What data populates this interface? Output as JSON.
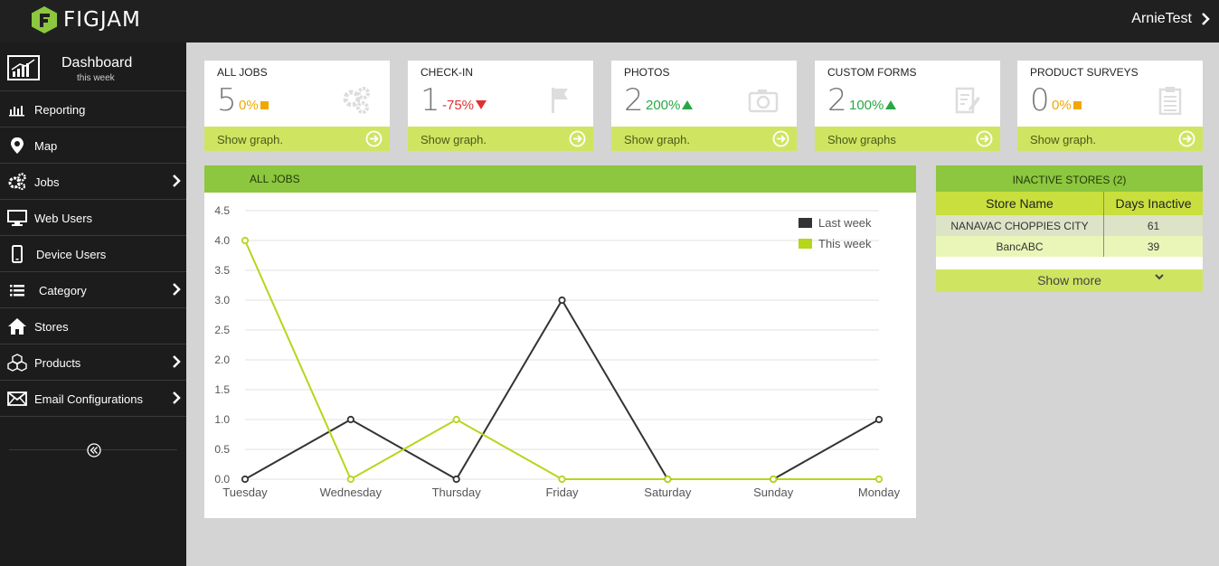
{
  "app": {
    "logo_text": "FIGJAM",
    "user": "ArnieTest"
  },
  "sidebar": {
    "title": "Dashboard",
    "subtitle": "this week",
    "items": [
      {
        "label": "Reporting",
        "icon": "bar-chart-icon",
        "arrow": false
      },
      {
        "label": "Map",
        "icon": "map-pin-icon",
        "arrow": false
      },
      {
        "label": "Jobs",
        "icon": "gears-icon",
        "arrow": true
      },
      {
        "label": "Web Users",
        "icon": "monitor-icon",
        "arrow": false
      },
      {
        "label": "Device Users",
        "icon": "phone-icon",
        "arrow": false
      },
      {
        "label": "Category",
        "icon": "list-icon",
        "arrow": true
      },
      {
        "label": "Stores",
        "icon": "home-icon",
        "arrow": false
      },
      {
        "label": "Products",
        "icon": "cubes-icon",
        "arrow": true
      },
      {
        "label": "Email Configurations",
        "icon": "envelope-icon",
        "arrow": true
      }
    ]
  },
  "cards": [
    {
      "title": "ALL JOBS",
      "value": "5",
      "pct": "0%",
      "trend": "flat",
      "icon": "gears-icon",
      "footer": "Show graph."
    },
    {
      "title": "CHECK-IN",
      "value": "1",
      "pct": "-75%",
      "trend": "down",
      "icon": "flag-icon",
      "footer": "Show graph."
    },
    {
      "title": "PHOTOS",
      "value": "2",
      "pct": "200%",
      "trend": "up",
      "icon": "camera-icon",
      "footer": "Show graph."
    },
    {
      "title": "CUSTOM FORMS",
      "value": "2",
      "pct": "100%",
      "trend": "up",
      "icon": "form-edit-icon",
      "footer": "Show graphs"
    },
    {
      "title": "PRODUCT SURVEYS",
      "value": "0",
      "pct": "0%",
      "trend": "flat",
      "icon": "clipboard-icon",
      "footer": "Show graph."
    }
  ],
  "colors": {
    "up": "#27a844",
    "down": "#e03030",
    "flat": "#f0a800",
    "accent": "#8dc63f",
    "footer": "#cfe561",
    "last_week": "#333333",
    "this_week": "#b5d61a"
  },
  "chart_panel": {
    "title": "ALL JOBS"
  },
  "chart_data": {
    "type": "line",
    "categories": [
      "Tuesday",
      "Wednesday",
      "Thursday",
      "Friday",
      "Saturday",
      "Sunday",
      "Monday"
    ],
    "series": [
      {
        "name": "Last week",
        "values": [
          0,
          1,
          0,
          3,
          0,
          0,
          1
        ]
      },
      {
        "name": "This week",
        "values": [
          4,
          0,
          1,
          0,
          0,
          0,
          0
        ]
      }
    ],
    "yticks": [
      "0.0",
      "0.5",
      "1.0",
      "1.5",
      "2.0",
      "2.5",
      "3.0",
      "3.5",
      "4.0",
      "4.5"
    ],
    "ylim": [
      0,
      4.5
    ],
    "grid": true,
    "legend": "top-right"
  },
  "inactive_stores": {
    "title": "INACTIVE STORES (2)",
    "columns": [
      "Store Name",
      "Days Inactive"
    ],
    "rows": [
      {
        "name": "NANAVAC CHOPPIES CITY",
        "days": "61"
      },
      {
        "name": "BancABC",
        "days": "39"
      }
    ],
    "show_more": "Show more"
  }
}
